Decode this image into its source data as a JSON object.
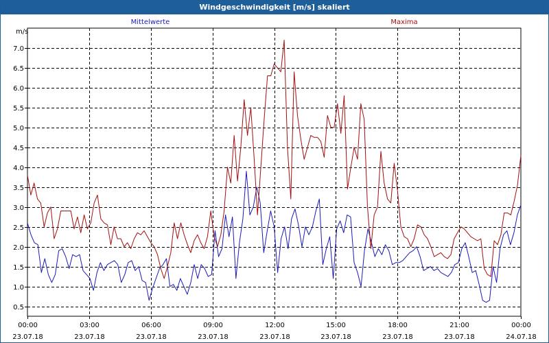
{
  "window": {
    "title": "Windgeschwindigkeit [m/s] skaliert"
  },
  "colors": {
    "mean": "#1a1ab8",
    "max": "#a30f0f",
    "titlebar": "#1f5f99",
    "grid": "#000000"
  },
  "chart_data": {
    "type": "line",
    "unit_label": "m/s",
    "ylim": [
      0.25,
      7.5
    ],
    "yticks": [
      "0.5",
      "1.0",
      "1.5",
      "2.0",
      "2.5",
      "3.0",
      "3.5",
      "4.0",
      "4.5",
      "5.0",
      "5.5",
      "6.0",
      "6.5",
      "7.0"
    ],
    "xlim_hours": [
      0,
      24
    ],
    "grid": true,
    "x_ticks": [
      {
        "time": "00:00",
        "date": "23.07.18"
      },
      {
        "time": "03:00",
        "date": "23.07.18"
      },
      {
        "time": "06:00",
        "date": "23.07.18"
      },
      {
        "time": "09:00",
        "date": "23.07.18"
      },
      {
        "time": "12:00",
        "date": "23.07.18"
      },
      {
        "time": "15:00",
        "date": "23.07.18"
      },
      {
        "time": "18:00",
        "date": "23.07.18"
      },
      {
        "time": "21:00",
        "date": "23.07.18"
      },
      {
        "time": "00:00",
        "date": "24.07.18"
      }
    ],
    "series": [
      {
        "name": "Mittelwerte",
        "color": "#1a1ab8",
        "legend_position": "top-left",
        "values": [
          2.6,
          2.3,
          2.1,
          2.05,
          1.35,
          1.7,
          1.3,
          1.1,
          1.3,
          1.9,
          1.95,
          1.75,
          1.45,
          1.8,
          1.75,
          1.8,
          1.4,
          1.3,
          1.2,
          0.9,
          1.35,
          1.6,
          1.4,
          1.55,
          1.6,
          1.65,
          1.55,
          1.1,
          1.3,
          1.6,
          1.65,
          1.4,
          1.5,
          1.15,
          1.1,
          0.65,
          0.95,
          1.2,
          1.45,
          1.55,
          1.7,
          1.0,
          1.05,
          0.9,
          1.2,
          1.0,
          0.8,
          1.1,
          1.55,
          1.2,
          1.55,
          1.45,
          1.25,
          1.3,
          2.4,
          1.75,
          1.95,
          2.8,
          2.25,
          2.75,
          1.2,
          2.1,
          2.7,
          3.9,
          2.8,
          3.0,
          3.5,
          3.1,
          1.85,
          2.4,
          2.9,
          2.5,
          1.35,
          2.2,
          2.5,
          1.95,
          2.7,
          2.95,
          2.55,
          2.0,
          2.5,
          2.3,
          2.5,
          2.9,
          3.2,
          1.55,
          1.95,
          2.25,
          1.2,
          2.45,
          2.65,
          2.35,
          2.8,
          2.75,
          1.6,
          1.35,
          1.0,
          1.9,
          2.45,
          2.1,
          1.75,
          1.95,
          1.8,
          2.05,
          1.9,
          1.55,
          1.6,
          1.6,
          1.65,
          1.75,
          1.85,
          1.9,
          2.0,
          1.75,
          1.4,
          1.45,
          1.5,
          1.4,
          1.45,
          1.35,
          1.3,
          1.25,
          1.35,
          1.55,
          1.6,
          1.95,
          2.1,
          1.75,
          1.35,
          1.4,
          1.05,
          0.65,
          0.6,
          0.65,
          1.5,
          1.1,
          1.95,
          2.3,
          2.4,
          2.05,
          2.35,
          2.8,
          3.05
        ]
      },
      {
        "name": "Maxima",
        "color": "#a30f0f",
        "legend_position": "top-right",
        "values": [
          3.8,
          3.3,
          3.6,
          3.2,
          3.1,
          2.5,
          2.85,
          3.0,
          2.2,
          2.45,
          2.9,
          2.9,
          2.9,
          2.9,
          2.45,
          2.75,
          2.35,
          2.8,
          2.45,
          2.6,
          3.1,
          3.3,
          2.7,
          2.6,
          2.55,
          2.05,
          2.5,
          2.2,
          2.2,
          2.0,
          2.1,
          1.95,
          2.2,
          2.35,
          2.3,
          2.4,
          2.25,
          2.1,
          2.0,
          1.8,
          1.45,
          1.2,
          1.5,
          1.85,
          2.6,
          2.2,
          2.6,
          2.3,
          2.05,
          1.85,
          2.15,
          2.3,
          2.1,
          1.95,
          2.25,
          2.9,
          2.25,
          2.0,
          2.3,
          2.9,
          4.0,
          3.6,
          4.8,
          3.65,
          4.5,
          5.7,
          4.8,
          5.5,
          4.2,
          2.8,
          4.0,
          5.2,
          6.3,
          6.3,
          6.6,
          6.5,
          6.4,
          7.2,
          4.5,
          3.2,
          6.4,
          5.3,
          4.7,
          4.2,
          4.5,
          4.8,
          4.75,
          4.75,
          4.65,
          4.25,
          5.3,
          5.0,
          5.0,
          5.6,
          4.85,
          5.8,
          3.45,
          4.0,
          4.5,
          4.2,
          5.6,
          5.2,
          3.0,
          1.95,
          2.8,
          3.0,
          4.4,
          3.6,
          3.2,
          3.1,
          4.1,
          3.4,
          2.5,
          2.25,
          2.2,
          2.0,
          2.2,
          2.55,
          2.5,
          2.3,
          2.2,
          2.0,
          1.75,
          1.8,
          1.85,
          1.75,
          1.7,
          1.8,
          2.2,
          2.35,
          2.5,
          2.45,
          2.35,
          2.25,
          2.2,
          2.15,
          2.2,
          1.45,
          1.3,
          1.25,
          2.15,
          2.05,
          2.3,
          2.85,
          2.85,
          2.8,
          3.15,
          3.55,
          4.3
        ]
      }
    ]
  }
}
